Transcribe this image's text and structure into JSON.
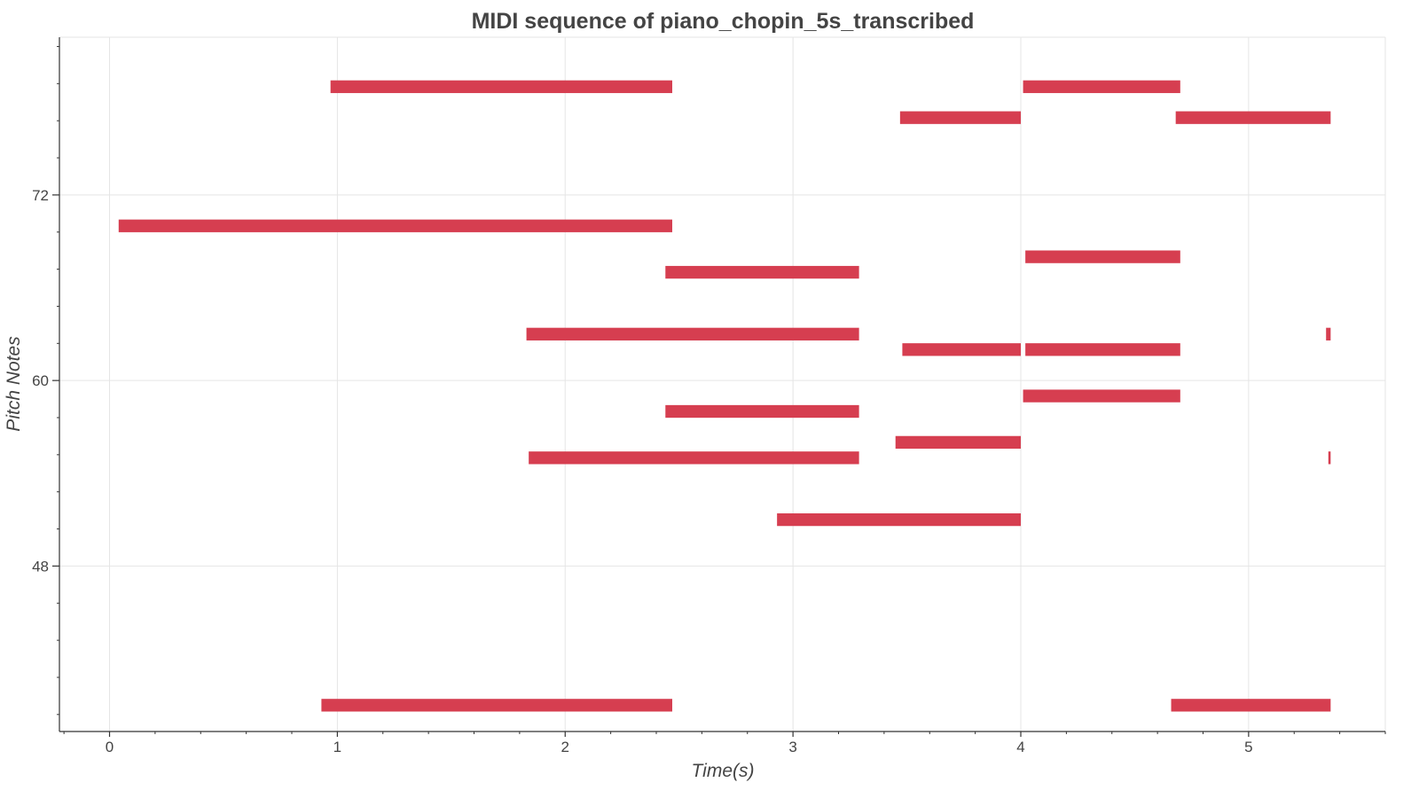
{
  "chart_data": {
    "type": "piano-roll",
    "title": "MIDI sequence of piano_chopin_5s_transcribed",
    "xlabel": "Time(s)",
    "ylabel": "Pitch Notes",
    "xlim": [
      -0.22,
      5.6
    ],
    "ylim": [
      37.3,
      82.2
    ],
    "x_ticks": [
      0,
      1,
      2,
      3,
      4,
      5
    ],
    "y_ticks": [
      48,
      60,
      72
    ],
    "grid": true,
    "bar_color": "#d63e50",
    "notes": [
      {
        "pitch": 79,
        "start": 0.97,
        "end": 2.47
      },
      {
        "pitch": 79,
        "start": 4.01,
        "end": 4.7
      },
      {
        "pitch": 77,
        "start": 3.47,
        "end": 4.0
      },
      {
        "pitch": 77,
        "start": 4.68,
        "end": 5.36
      },
      {
        "pitch": 70,
        "start": 0.04,
        "end": 2.47
      },
      {
        "pitch": 68,
        "start": 4.02,
        "end": 4.7
      },
      {
        "pitch": 67,
        "start": 2.44,
        "end": 3.29
      },
      {
        "pitch": 63,
        "start": 1.83,
        "end": 3.29
      },
      {
        "pitch": 63,
        "start": 5.34,
        "end": 5.36
      },
      {
        "pitch": 62,
        "start": 3.48,
        "end": 4.0
      },
      {
        "pitch": 62,
        "start": 4.02,
        "end": 4.7
      },
      {
        "pitch": 59,
        "start": 4.01,
        "end": 4.7
      },
      {
        "pitch": 58,
        "start": 2.44,
        "end": 3.29
      },
      {
        "pitch": 56,
        "start": 3.45,
        "end": 4.0
      },
      {
        "pitch": 55,
        "start": 1.84,
        "end": 3.29
      },
      {
        "pitch": 55,
        "start": 5.35,
        "end": 5.36
      },
      {
        "pitch": 51,
        "start": 2.93,
        "end": 4.0
      },
      {
        "pitch": 39,
        "start": 0.93,
        "end": 2.47
      },
      {
        "pitch": 39,
        "start": 4.66,
        "end": 5.36
      }
    ]
  }
}
